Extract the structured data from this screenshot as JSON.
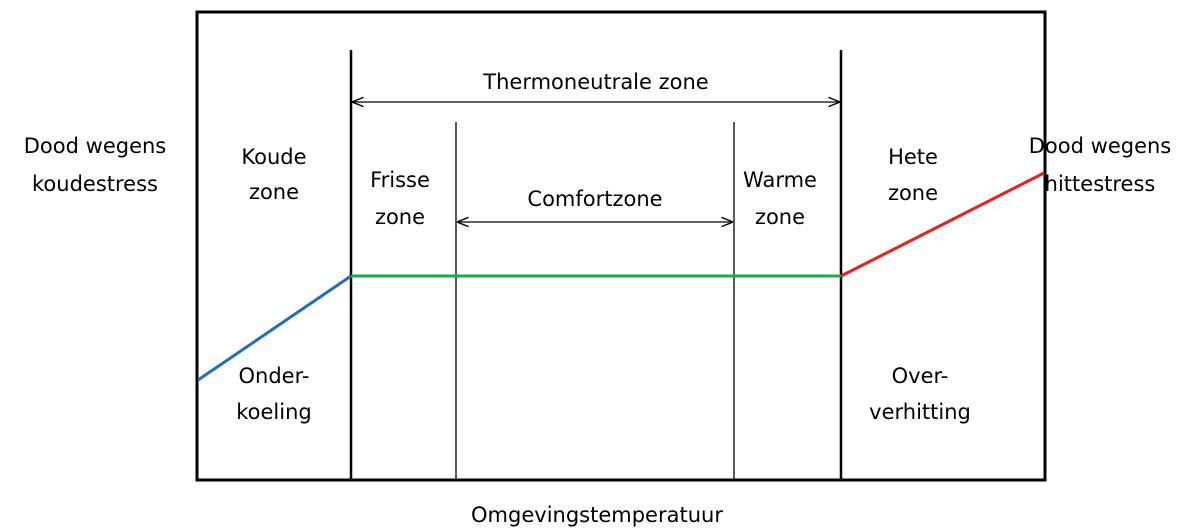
{
  "labels": {
    "cold_death": [
      "Dood wegens",
      "koudestress"
    ],
    "cold_zone": [
      "Koude",
      "zone"
    ],
    "cool_zone": [
      "Frisse",
      "zone"
    ],
    "thermoneutral": "Thermoneutrale zone",
    "comfort": "Comfortzone",
    "warm_zone": [
      "Warme",
      "zone"
    ],
    "hot_zone": [
      "Hete",
      "zone"
    ],
    "heat_death": [
      "Dood wegens",
      "hittestress"
    ],
    "hypothermia": [
      "Onder-",
      "koeling"
    ],
    "hyperthermia": [
      "Over-",
      "verhitting"
    ],
    "x_axis": "Omgevingstemperatuur"
  }
}
